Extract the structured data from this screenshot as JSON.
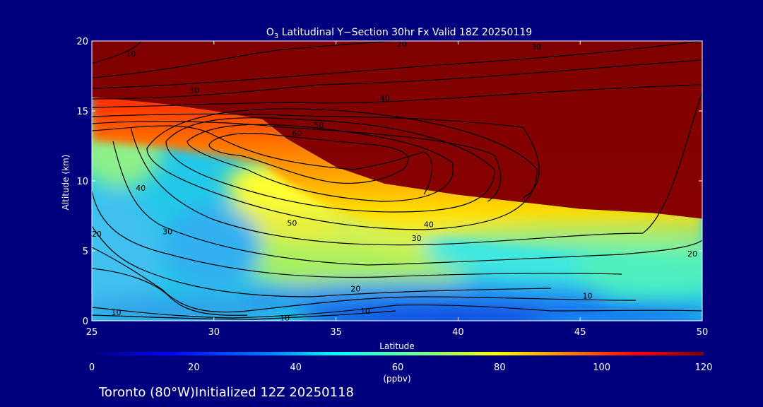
{
  "footer": {
    "location": "Toronto (80°W)Initialized 12Z 20250118"
  },
  "colorbar": {
    "ticks": [
      "0",
      "20",
      "40",
      "60",
      "80",
      "100",
      "120"
    ],
    "unit": "(ppbv)"
  },
  "chart_data": {
    "type": "heatmap",
    "title_prefix": "O",
    "title_sub": "3",
    "title_rest": " Latitudinal Y−Section 30hr  Fx Valid 18Z 20250119",
    "xlabel": "Latitude",
    "ylabel": "Altitude (km)",
    "xlim": [
      25,
      50
    ],
    "ylim": [
      0,
      20
    ],
    "x_ticks": [
      "25",
      "30",
      "35",
      "40",
      "45",
      "50"
    ],
    "y_ticks": [
      "0",
      "5",
      "10",
      "15",
      "20"
    ],
    "color_range": [
      0,
      120
    ],
    "colormap": [
      "#00007f",
      "#0000ff",
      "#007fff",
      "#00ffff",
      "#7fff7f",
      "#ffff00",
      "#ff7f00",
      "#ff0000",
      "#7f0000"
    ],
    "tropopause_altitude_km": [
      [
        25,
        16.0
      ],
      [
        28,
        15.5
      ],
      [
        30,
        15.0
      ],
      [
        32,
        14.4
      ],
      [
        33,
        13.0
      ],
      [
        35,
        11.0
      ],
      [
        37,
        9.8
      ],
      [
        40,
        9.0
      ],
      [
        42,
        8.6
      ],
      [
        45,
        8.0
      ],
      [
        48,
        7.7
      ],
      [
        50,
        7.3
      ]
    ],
    "contour_labels": [
      {
        "text": "10",
        "x": 26.6,
        "y": 19.1
      },
      {
        "text": "20",
        "x": 37.7,
        "y": 19.8
      },
      {
        "text": "30",
        "x": 43.2,
        "y": 19.6
      },
      {
        "text": "30",
        "x": 29.2,
        "y": 16.5
      },
      {
        "text": "40",
        "x": 37.0,
        "y": 15.9
      },
      {
        "text": "50",
        "x": 34.3,
        "y": 14.0
      },
      {
        "text": "60",
        "x": 33.4,
        "y": 13.4
      },
      {
        "text": "40",
        "x": 27.0,
        "y": 9.5
      },
      {
        "text": "20",
        "x": 25.2,
        "y": 6.2
      },
      {
        "text": "30",
        "x": 28.1,
        "y": 6.4
      },
      {
        "text": "50",
        "x": 33.2,
        "y": 7.0
      },
      {
        "text": "40",
        "x": 38.8,
        "y": 6.9
      },
      {
        "text": "30",
        "x": 38.3,
        "y": 5.9
      },
      {
        "text": "20",
        "x": 49.6,
        "y": 4.8
      },
      {
        "text": "20",
        "x": 35.8,
        "y": 2.3
      },
      {
        "text": "10",
        "x": 45.3,
        "y": 1.8
      },
      {
        "text": "10",
        "x": 26.0,
        "y": 0.6
      },
      {
        "text": "10",
        "x": 32.9,
        "y": 0.2
      },
      {
        "text": "10",
        "x": 36.2,
        "y": 0.7
      }
    ]
  }
}
